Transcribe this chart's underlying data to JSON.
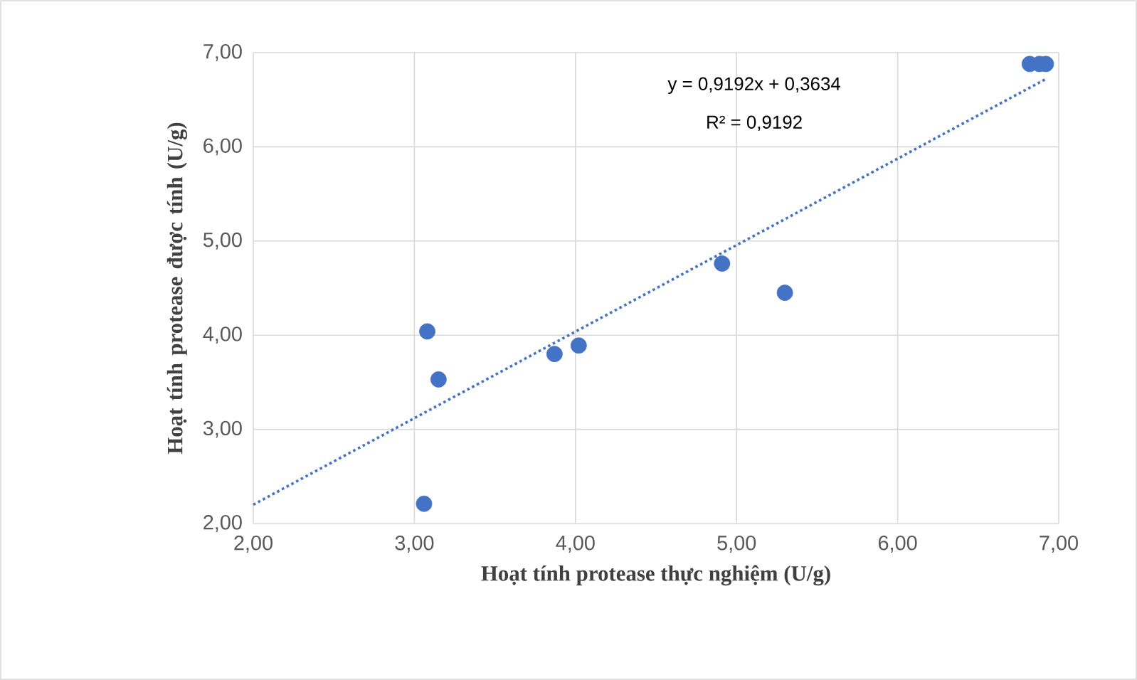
{
  "chart_data": {
    "type": "scatter",
    "xlabel": "Hoạt tính protease thực nghiệm (U/g)",
    "ylabel": "Hoạt tính protease được tính (U/g)",
    "annotations": [
      "y = 0,9192x + 0,3634",
      "R² = 0,9192"
    ],
    "series": [
      {
        "type": "scatter",
        "color": "#4472c4",
        "marker": "circle",
        "x": [
          3.08,
          3.15,
          3.06,
          3.87,
          4.02,
          4.91,
          5.3,
          6.82,
          6.88,
          6.92
        ],
        "values": [
          4.04,
          3.53,
          2.21,
          3.8,
          3.89,
          4.76,
          4.45,
          6.88,
          6.88,
          6.88
        ]
      },
      {
        "type": "line",
        "color": "#4472c4",
        "marker": "none",
        "line_style": "dotted",
        "x": [
          2,
          6.92
        ],
        "values": [
          2.2,
          6.72
        ]
      }
    ],
    "xlim": [
      2,
      7
    ],
    "ylim": [
      2,
      7
    ],
    "xticks": [
      {
        "value": 2,
        "label": "2,00"
      },
      {
        "value": 3,
        "label": "3,00"
      },
      {
        "value": 4,
        "label": "4,00"
      },
      {
        "value": 5,
        "label": "5,00"
      },
      {
        "value": 6,
        "label": "6,00"
      },
      {
        "value": 7,
        "label": "7,00"
      }
    ],
    "yticks": [
      {
        "value": 2,
        "label": "2,00"
      },
      {
        "value": 3,
        "label": "3,00"
      },
      {
        "value": 4,
        "label": "4,00"
      },
      {
        "value": 5,
        "label": "5,00"
      },
      {
        "value": 6,
        "label": "6,00"
      },
      {
        "value": 7,
        "label": "7,00"
      }
    ],
    "grid": true
  }
}
